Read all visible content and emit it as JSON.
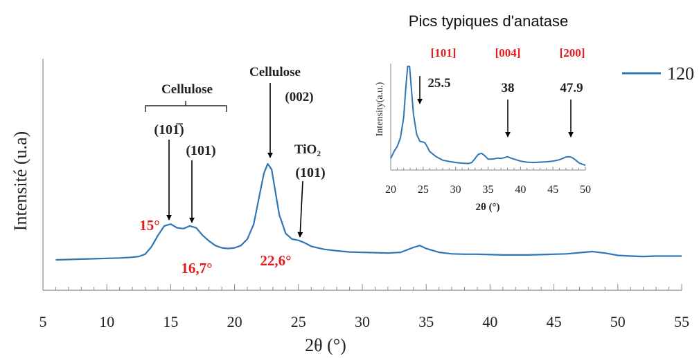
{
  "chart_data": [
    {
      "type": "line",
      "title": "",
      "xlabel": "2θ (°)",
      "ylabel": "Intensité (u.a)",
      "xlim": [
        5,
        55
      ],
      "xticks": [
        5,
        10,
        15,
        20,
        25,
        30,
        35,
        40,
        45,
        50,
        55
      ],
      "yticks_shown": false,
      "legend": {
        "placement": "top-right",
        "entries": [
          "120"
        ]
      },
      "series": [
        {
          "name": "120",
          "color": "#2e75b6",
          "x": [
            6,
            7,
            8,
            9,
            10,
            11,
            12,
            12.5,
            13,
            13.5,
            14,
            14.5,
            15,
            15.5,
            16,
            16.5,
            17,
            17.5,
            18,
            18.5,
            19,
            19.5,
            20,
            20.5,
            21,
            21.5,
            22,
            22.3,
            22.6,
            22.9,
            23.2,
            23.5,
            24,
            24.5,
            25,
            25.5,
            26,
            27,
            28,
            29,
            30,
            31,
            32,
            33,
            34,
            34.5,
            35,
            36,
            37,
            38,
            39,
            40,
            41,
            42,
            43,
            44,
            45,
            46,
            47,
            48,
            49,
            50,
            51,
            52,
            53,
            54,
            55
          ],
          "y": [
            2.0,
            2.1,
            2.2,
            2.3,
            2.4,
            2.5,
            2.7,
            2.9,
            3.5,
            5.5,
            8.5,
            11.0,
            11.5,
            10.5,
            10.3,
            11.0,
            10.5,
            8.5,
            7.0,
            5.8,
            5.2,
            5.0,
            5.2,
            5.8,
            7.5,
            11.5,
            20.0,
            25.0,
            27.5,
            26.0,
            20.0,
            14.0,
            9.0,
            7.5,
            7.2,
            6.5,
            5.6,
            4.8,
            4.4,
            4.1,
            4.0,
            3.9,
            3.8,
            4.0,
            5.3,
            5.8,
            5.0,
            4.0,
            3.6,
            3.5,
            3.5,
            3.4,
            3.3,
            3.3,
            3.3,
            3.4,
            3.5,
            3.6,
            3.9,
            4.2,
            3.8,
            3.2,
            3.0,
            2.9,
            3.0,
            3.0,
            3.0
          ]
        }
      ],
      "annotations": [
        {
          "text": "Cellulose",
          "target": "bracket over 13–19.5°"
        },
        {
          "text": "(101̅)",
          "x": 15,
          "y": 11.5
        },
        {
          "text": "(101)",
          "x": 16.7,
          "y": 11.0
        },
        {
          "text": "Cellulose",
          "x": 22.9,
          "y": 27.5
        },
        {
          "text": "(002)",
          "x": 22.9,
          "y": 27.5
        },
        {
          "text": "TiO₂",
          "x": 25.3,
          "y": 7.2
        },
        {
          "text": "(101)",
          "x": 25.3,
          "y": 7.2
        },
        {
          "text": "15°",
          "color": "#e41a1c"
        },
        {
          "text": "16,7°",
          "color": "#e41a1c"
        },
        {
          "text": "22,6°",
          "color": "#e41a1c"
        }
      ]
    },
    {
      "type": "line",
      "title": "Pics typiques d'anatase",
      "xlabel": "2θ (°)",
      "ylabel": "Intensity(a.u.)",
      "xlim": [
        20,
        50
      ],
      "xticks": [
        20,
        25,
        30,
        35,
        40,
        45,
        50
      ],
      "series": [
        {
          "name": "",
          "color": "#2e75b6",
          "x": [
            20,
            20.5,
            21,
            21.5,
            22,
            22.3,
            22.6,
            22.9,
            23.2,
            23.5,
            24,
            24.5,
            25,
            25.3,
            25.6,
            26,
            27,
            28,
            29,
            30,
            31,
            32,
            32.5,
            33,
            33.5,
            34,
            34.5,
            35,
            35.5,
            36,
            36.5,
            37,
            37.5,
            38,
            38.5,
            39,
            39.5,
            40,
            41,
            42,
            43,
            44,
            45,
            46,
            46.5,
            47,
            47.5,
            48,
            48.5,
            49,
            49.5,
            50
          ],
          "y": [
            3.0,
            5.0,
            6.5,
            9.0,
            15.0,
            23.0,
            30.0,
            30.0,
            23.0,
            16.0,
            10.0,
            8.0,
            7.8,
            7.5,
            6.5,
            5.0,
            3.5,
            2.5,
            2.1,
            1.8,
            1.6,
            1.5,
            1.8,
            3.0,
            4.2,
            4.5,
            3.8,
            2.8,
            2.8,
            2.9,
            3.1,
            3.0,
            3.2,
            3.5,
            3.1,
            2.8,
            2.5,
            2.2,
            1.9,
            1.8,
            1.9,
            2.0,
            2.2,
            2.6,
            3.0,
            3.4,
            3.5,
            3.2,
            2.5,
            1.7,
            1.3,
            1.0
          ]
        }
      ],
      "annotations": [
        {
          "text": "[101]",
          "color": "#e41a1c",
          "x": 25.5
        },
        {
          "text": "[004]",
          "color": "#e41a1c",
          "x": 38
        },
        {
          "text": "[200]",
          "color": "#e41a1c",
          "x": 47.9
        },
        {
          "text": "25.5",
          "x": 25.5
        },
        {
          "text": "38",
          "x": 38
        },
        {
          "text": "47.9",
          "x": 47.9
        }
      ]
    }
  ]
}
